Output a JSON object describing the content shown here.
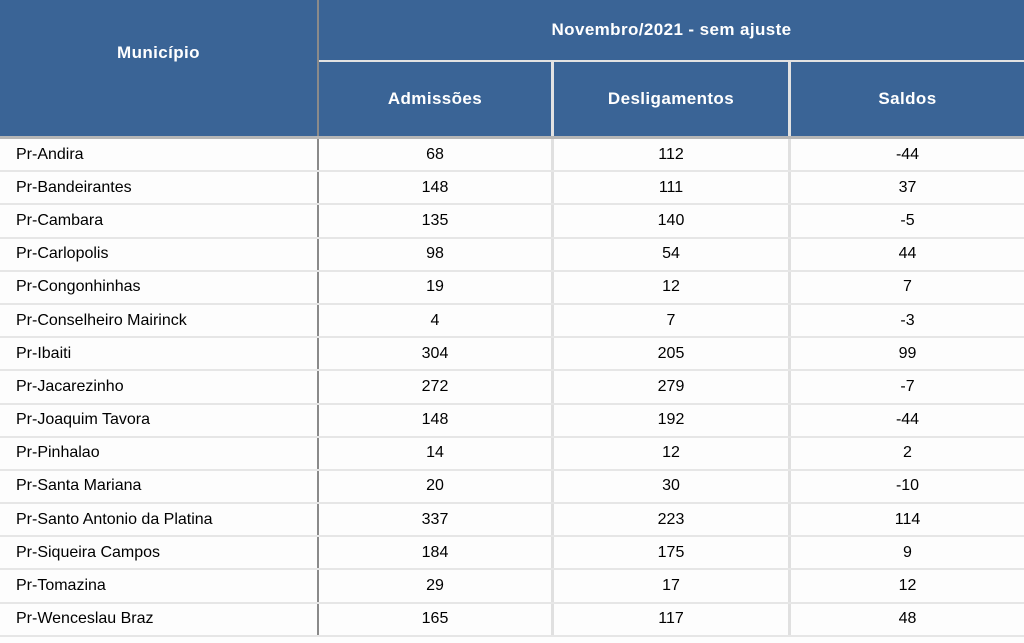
{
  "table": {
    "municipality_header": "Município",
    "period_header": "Novembro/2021 - sem ajuste",
    "columns": [
      "Admissões",
      "Desligamentos",
      "Saldos"
    ],
    "rows": [
      {
        "municipality": "Pr-Andira",
        "admissions": 68,
        "dismissals": 112,
        "balance": -44
      },
      {
        "municipality": "Pr-Bandeirantes",
        "admissions": 148,
        "dismissals": 111,
        "balance": 37
      },
      {
        "municipality": "Pr-Cambara",
        "admissions": 135,
        "dismissals": 140,
        "balance": -5
      },
      {
        "municipality": "Pr-Carlopolis",
        "admissions": 98,
        "dismissals": 54,
        "balance": 44
      },
      {
        "municipality": "Pr-Congonhinhas",
        "admissions": 19,
        "dismissals": 12,
        "balance": 7
      },
      {
        "municipality": "Pr-Conselheiro Mairinck",
        "admissions": 4,
        "dismissals": 7,
        "balance": -3
      },
      {
        "municipality": "Pr-Ibaiti",
        "admissions": 304,
        "dismissals": 205,
        "balance": 99
      },
      {
        "municipality": "Pr-Jacarezinho",
        "admissions": 272,
        "dismissals": 279,
        "balance": -7
      },
      {
        "municipality": "Pr-Joaquim Tavora",
        "admissions": 148,
        "dismissals": 192,
        "balance": -44
      },
      {
        "municipality": "Pr-Pinhalao",
        "admissions": 14,
        "dismissals": 12,
        "balance": 2
      },
      {
        "municipality": "Pr-Santa Mariana",
        "admissions": 20,
        "dismissals": 30,
        "balance": -10
      },
      {
        "municipality": "Pr-Santo Antonio da Platina",
        "admissions": 337,
        "dismissals": 223,
        "balance": 114
      },
      {
        "municipality": "Pr-Siqueira Campos",
        "admissions": 184,
        "dismissals": 175,
        "balance": 9
      },
      {
        "municipality": "Pr-Tomazina",
        "admissions": 29,
        "dismissals": 17,
        "balance": 12
      },
      {
        "municipality": "Pr-Wenceslau Braz",
        "admissions": 165,
        "dismissals": 117,
        "balance": 48
      }
    ]
  },
  "colors": {
    "header_bg": "#3a6496",
    "header_text": "#ffffff",
    "body_bg": "#fdfdfd",
    "body_text": "#000000",
    "row_separator": "#e6e6e6",
    "column_divider_dark": "#8a8a8a",
    "column_divider_light": "#e0e0e0",
    "header_bottom_border": "#b6b6b6"
  }
}
